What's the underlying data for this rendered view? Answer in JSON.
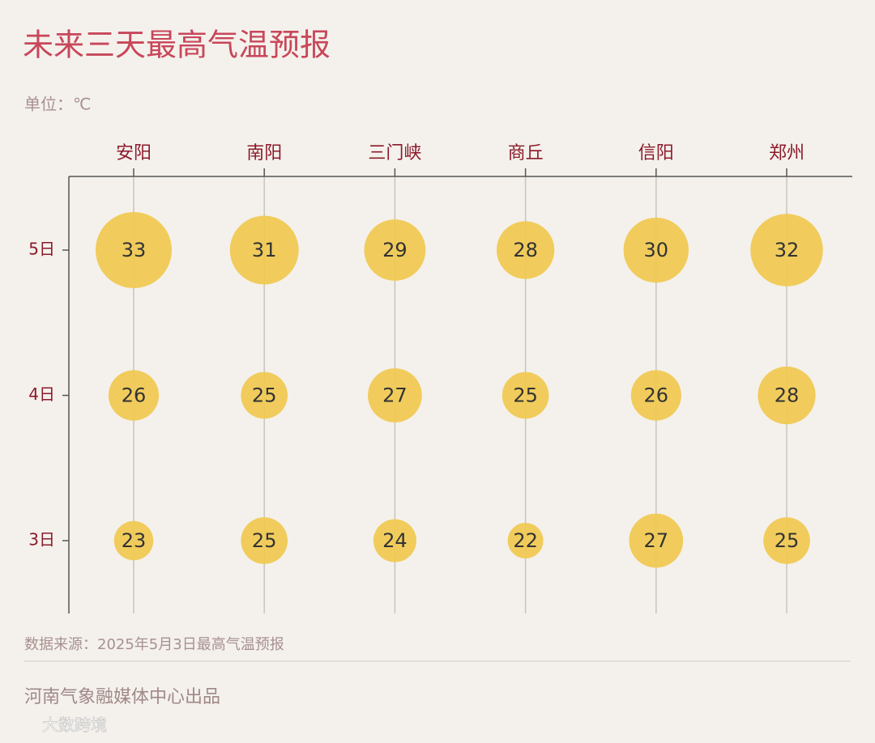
{
  "chart_data": {
    "type": "bubble",
    "title": "未来三天最高气温预报",
    "subtitle": "单位：℃",
    "categories": [
      "安阳",
      "南阳",
      "三门峡",
      "商丘",
      "信阳",
      "郑州"
    ],
    "series": [
      {
        "name": "5日",
        "color": "#f0c94f",
        "values": [
          33,
          31,
          29,
          28,
          30,
          32
        ]
      },
      {
        "name": "4日",
        "color": "#f0c94f",
        "values": [
          26,
          25,
          27,
          25,
          26,
          28
        ]
      },
      {
        "name": "3日",
        "color": "#f0c94f",
        "values": [
          23,
          25,
          24,
          22,
          27,
          25
        ]
      }
    ],
    "source": "数据来源：2025年5月3日最高气温预报",
    "producer": "河南气象融媒体中心出品",
    "watermark": "大数跨境"
  }
}
